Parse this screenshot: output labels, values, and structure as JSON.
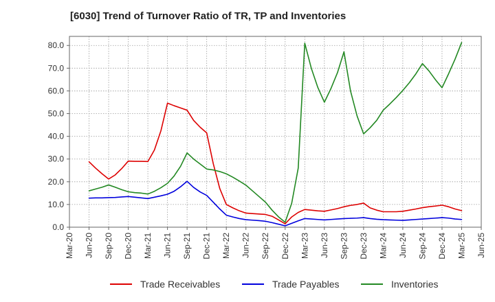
{
  "chart_data": {
    "type": "line",
    "title": "[6030]  Trend of Turnover Ratio of TR, TP and Inventories",
    "xlabel": "",
    "ylabel": "",
    "x_ticks": [
      "Mar-20",
      "Jun-20",
      "Sep-20",
      "Dec-20",
      "Mar-21",
      "Jun-21",
      "Sep-21",
      "Dec-21",
      "Mar-22",
      "Jun-22",
      "Sep-22",
      "Dec-22",
      "Mar-23",
      "Jun-23",
      "Sep-23",
      "Dec-23",
      "Mar-24",
      "Jun-24",
      "Sep-24",
      "Dec-24",
      "Mar-25",
      "Jun-25"
    ],
    "y_ticks": [
      "0.0",
      "10.0",
      "20.0",
      "30.0",
      "40.0",
      "50.0",
      "60.0",
      "70.0",
      "80.0"
    ],
    "ylim": [
      0,
      84
    ],
    "grid": true,
    "legend_position": "bottom",
    "x": [
      "Jun-20",
      "Jul-20",
      "Aug-20",
      "Sep-20",
      "Oct-20",
      "Nov-20",
      "Dec-20",
      "Jan-21",
      "Feb-21",
      "Mar-21",
      "Apr-21",
      "May-21",
      "Jun-21",
      "Jul-21",
      "Aug-21",
      "Sep-21",
      "Oct-21",
      "Nov-21",
      "Dec-21",
      "Jan-22",
      "Feb-22",
      "Mar-22",
      "Apr-22",
      "May-22",
      "Jun-22",
      "Jul-22",
      "Aug-22",
      "Sep-22",
      "Oct-22",
      "Nov-22",
      "Dec-22",
      "Jan-23",
      "Feb-23",
      "Mar-23",
      "Apr-23",
      "May-23",
      "Jun-23",
      "Jul-23",
      "Aug-23",
      "Sep-23",
      "Oct-23",
      "Nov-23",
      "Dec-23",
      "Jan-24",
      "Feb-24",
      "Mar-24",
      "Apr-24",
      "May-24",
      "Jun-24",
      "Jul-24",
      "Aug-24",
      "Sep-24",
      "Oct-24",
      "Nov-24",
      "Dec-24",
      "Jan-25",
      "Feb-25",
      "Mar-25"
    ],
    "series": [
      {
        "name": "Trade Receivables",
        "color": "#dd0000",
        "values": [
          28.8,
          26,
          23.5,
          21.2,
          23,
          25.8,
          29.1,
          29,
          29,
          28.9,
          34,
          42.5,
          54.6,
          53.5,
          52.5,
          51.5,
          47,
          44,
          41.5,
          28,
          17,
          10,
          8.5,
          7.2,
          6.2,
          6,
          5.8,
          5.6,
          4.8,
          3.2,
          1.5,
          4.5,
          6.5,
          7.8,
          7.5,
          7.2,
          7,
          7.6,
          8.2,
          9,
          9.6,
          10,
          10.6,
          8.5,
          7.5,
          6.8,
          6.8,
          6.8,
          7,
          7.5,
          8,
          8.6,
          9,
          9.3,
          9.7,
          9,
          8,
          7.3
        ]
      },
      {
        "name": "Trade Payables",
        "color": "#0000dd",
        "values": [
          12.8,
          12.9,
          12.9,
          13,
          13.1,
          13.3,
          13.5,
          13.2,
          12.9,
          12.6,
          13.2,
          13.8,
          14.5,
          15.8,
          17.8,
          20.2,
          17.5,
          15.5,
          14,
          11,
          8,
          5.3,
          4.5,
          3.8,
          3.3,
          3.1,
          2.9,
          2.6,
          2,
          1.3,
          0.6,
          1.7,
          2.8,
          3.8,
          3.6,
          3.4,
          3.2,
          3.4,
          3.6,
          3.8,
          3.9,
          4,
          4.2,
          3.8,
          3.5,
          3.3,
          3.2,
          3.1,
          3,
          3.2,
          3.4,
          3.6,
          3.8,
          4,
          4.2,
          4,
          3.6,
          3.4
        ]
      },
      {
        "name": "Inventories",
        "color": "#228822",
        "values": [
          16,
          16.8,
          17.6,
          18.6,
          17.6,
          16.5,
          15.6,
          15.2,
          15,
          14.6,
          15.8,
          17.4,
          19.3,
          22.5,
          26.8,
          32.7,
          30,
          27.8,
          25.6,
          25.2,
          24.5,
          23.5,
          22,
          20.3,
          18.5,
          16,
          13.5,
          11,
          7.5,
          4.5,
          2.2,
          10.5,
          26,
          81,
          70,
          61.5,
          55,
          61,
          68,
          77.2,
          60,
          49,
          41.1,
          43.8,
          47,
          51.5,
          54.2,
          57.1,
          60.2,
          63.6,
          67.5,
          72,
          68.8,
          64.9,
          61.4,
          67.5,
          74,
          81.3
        ]
      }
    ]
  }
}
